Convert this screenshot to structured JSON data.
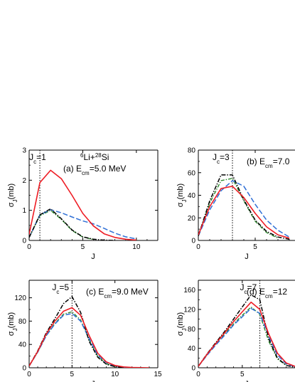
{
  "chart_data": [
    {
      "type": "line",
      "panel_label": "(a)",
      "energy_text": "5.0 MeV",
      "reaction": {
        "sup_a": "6",
        "a": "Li+",
        "sup_b": "28",
        "b": "Si"
      },
      "jc_value": "1",
      "xlabel": "J",
      "ylabel": "σ_J(mb)",
      "xlim": [
        0,
        12
      ],
      "ylim": [
        0,
        3
      ],
      "xticks": [
        0,
        5,
        10
      ],
      "yticks": [
        0,
        1,
        2,
        3
      ],
      "jc_line_x": 1,
      "series": [
        {
          "style": "red-solid",
          "color": "#ee1c24",
          "x": [
            0,
            1,
            2,
            3,
            4,
            5,
            6,
            7,
            8,
            9,
            10
          ],
          "values": [
            0.2,
            1.92,
            2.33,
            2.05,
            1.5,
            0.9,
            0.48,
            0.22,
            0.1,
            0.04,
            0.01
          ]
        },
        {
          "style": "blue-dash",
          "color": "#2f6fd6",
          "x": [
            0,
            1,
            2,
            3,
            4,
            5,
            6,
            7,
            8,
            9,
            10
          ],
          "values": [
            0.1,
            0.85,
            1.02,
            0.92,
            0.78,
            0.65,
            0.55,
            0.4,
            0.24,
            0.12,
            0.05
          ]
        },
        {
          "style": "black-dashdot",
          "color": "#000000",
          "x": [
            0,
            1,
            2,
            3,
            4,
            5,
            6,
            7,
            8
          ],
          "values": [
            0.1,
            0.85,
            1.05,
            0.72,
            0.35,
            0.12,
            0.04,
            0.01,
            0.0
          ]
        },
        {
          "style": "green-dashdot",
          "color": "#2e8b2e",
          "x": [
            0,
            1,
            2,
            3,
            4,
            5,
            6
          ],
          "values": [
            0.1,
            0.82,
            1.0,
            0.7,
            0.33,
            0.11,
            0.03
          ]
        }
      ]
    },
    {
      "type": "line",
      "panel_label": "(b)",
      "energy_text": "7.0",
      "jc_value": "3",
      "xlabel": "J",
      "ylabel": "σ_J(mb)",
      "xlim": [
        0,
        8.5
      ],
      "ylim": [
        0,
        80
      ],
      "xticks": [
        0,
        5
      ],
      "yticks": [
        0,
        20,
        40,
        60,
        80
      ],
      "jc_line_x": 3,
      "series": [
        {
          "style": "red-solid",
          "color": "#ee1c24",
          "x": [
            0,
            1,
            2,
            3,
            4,
            5,
            6,
            7,
            8
          ],
          "values": [
            5,
            30,
            46,
            48,
            38,
            24,
            12,
            5,
            2
          ]
        },
        {
          "style": "blue-dash",
          "color": "#2f6fd6",
          "x": [
            0,
            1,
            2,
            3,
            4,
            5,
            6,
            7,
            8
          ],
          "values": [
            4,
            27,
            44,
            53,
            48,
            32,
            18,
            9,
            3
          ]
        },
        {
          "style": "black-dashdot",
          "color": "#000000",
          "x": [
            0,
            1,
            2,
            3,
            4,
            5,
            6,
            7,
            8
          ],
          "values": [
            4,
            35,
            58,
            58,
            36,
            18,
            8,
            3,
            1
          ]
        },
        {
          "style": "green-dashdot",
          "color": "#2e8b2e",
          "x": [
            0,
            1,
            2,
            3,
            4,
            5,
            6,
            7
          ],
          "values": [
            4,
            33,
            53,
            55,
            35,
            17,
            7,
            2
          ]
        }
      ]
    },
    {
      "type": "line",
      "panel_label": "(c)",
      "energy_text": "9.0 MeV",
      "jc_value": "5",
      "xlabel": "J",
      "ylabel": "σ_J(mb)",
      "xlim": [
        0,
        15
      ],
      "ylim": [
        0,
        150
      ],
      "xticks": [
        0,
        5,
        10,
        15
      ],
      "yticks": [
        0,
        40,
        80,
        120
      ],
      "jc_line_x": 5,
      "series": [
        {
          "style": "red-solid",
          "color": "#ee1c24",
          "x": [
            0,
            1,
            2,
            3,
            4,
            5,
            6,
            7,
            8,
            9,
            10,
            11,
            12,
            13,
            14
          ],
          "values": [
            3,
            28,
            58,
            80,
            97,
            103,
            90,
            55,
            25,
            10,
            4,
            1.5,
            0.5,
            0.2,
            0
          ]
        },
        {
          "style": "blue-dash",
          "color": "#2f6fd6",
          "x": [
            0,
            1,
            2,
            3,
            4,
            5,
            6,
            7,
            8,
            9,
            10,
            11,
            12
          ],
          "values": [
            3,
            27,
            55,
            75,
            90,
            93,
            80,
            50,
            22,
            9,
            3,
            1,
            0.3
          ]
        },
        {
          "style": "black-dashdot",
          "color": "#000000",
          "x": [
            0,
            1,
            2,
            3,
            4,
            5,
            6,
            7,
            8,
            9,
            10,
            11
          ],
          "values": [
            3,
            29,
            60,
            84,
            110,
            122,
            95,
            45,
            18,
            6,
            2,
            0.5
          ]
        },
        {
          "style": "green-dashdot",
          "color": "#2e8b2e",
          "x": [
            0,
            1,
            2,
            3,
            4,
            5,
            6,
            7,
            8,
            9,
            10
          ],
          "values": [
            3,
            27,
            55,
            76,
            92,
            96,
            82,
            48,
            20,
            7,
            2
          ]
        }
      ]
    },
    {
      "type": "line",
      "panel_label": "(d)",
      "energy_text": "12",
      "jc_value": "7",
      "xlabel": "J",
      "ylabel": "σ_J(mb)",
      "xlim": [
        0,
        11
      ],
      "ylim": [
        0,
        180
      ],
      "xticks": [
        0,
        5
      ],
      "yticks": [
        0,
        40,
        80,
        120,
        160
      ],
      "jc_line_x": 7,
      "series": [
        {
          "style": "red-solid",
          "color": "#ee1c24",
          "x": [
            0,
            1,
            2,
            3,
            4,
            5,
            6,
            7,
            8,
            9,
            10,
            11
          ],
          "values": [
            3,
            28,
            50,
            72,
            95,
            115,
            135,
            120,
            70,
            30,
            10,
            3
          ]
        },
        {
          "style": "blue-dash",
          "color": "#2f6fd6",
          "x": [
            0,
            1,
            2,
            3,
            4,
            5,
            6,
            7,
            8,
            9,
            10,
            11
          ],
          "values": [
            3,
            26,
            47,
            67,
            88,
            105,
            122,
            112,
            65,
            26,
            8,
            2
          ]
        },
        {
          "style": "black-dashdot",
          "color": "#000000",
          "x": [
            0,
            1,
            2,
            3,
            4,
            5,
            6,
            7,
            8,
            9,
            10,
            11
          ],
          "values": [
            3,
            29,
            52,
            75,
            100,
            125,
            150,
            140,
            60,
            20,
            5,
            1
          ]
        },
        {
          "style": "green-dashdot",
          "color": "#2e8b2e",
          "x": [
            0,
            1,
            2,
            3,
            4,
            5,
            6,
            7,
            8,
            9,
            10
          ],
          "values": [
            3,
            27,
            49,
            70,
            90,
            108,
            125,
            110,
            55,
            18,
            5
          ]
        }
      ]
    }
  ]
}
